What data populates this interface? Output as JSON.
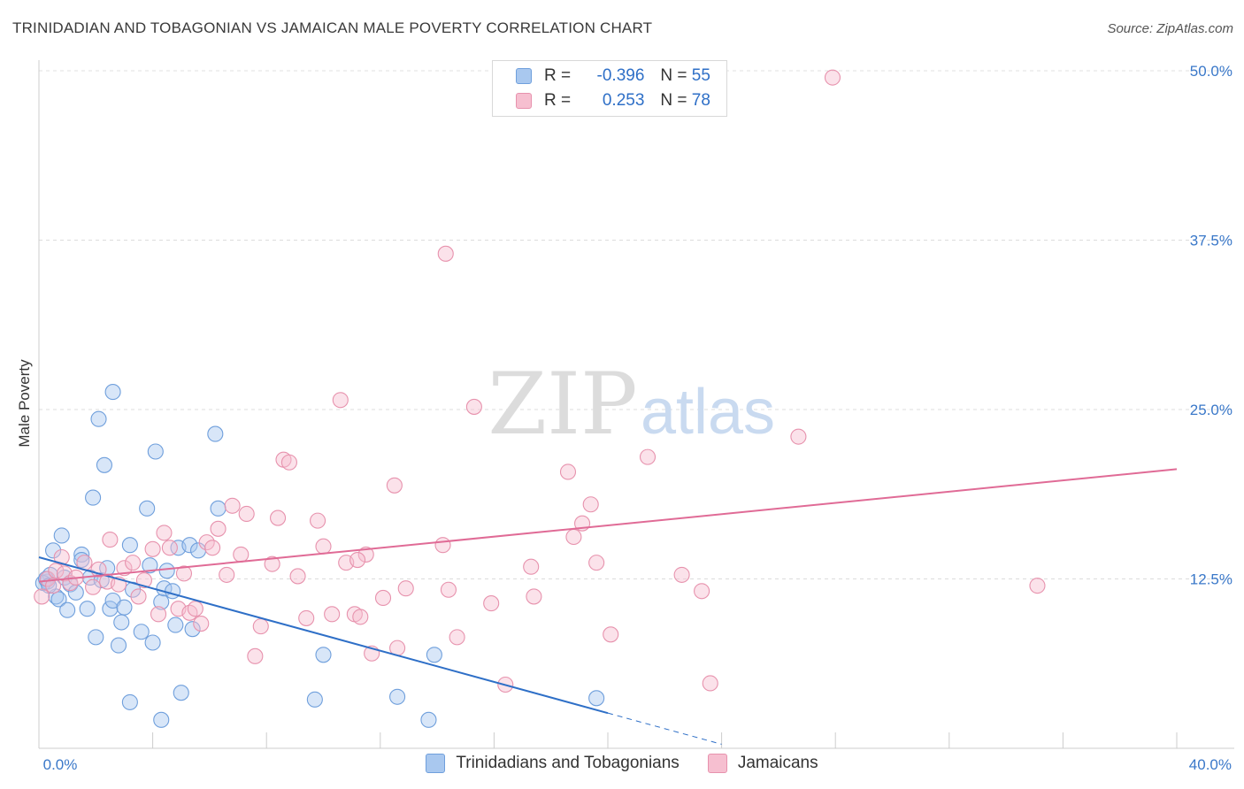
{
  "header": {
    "title": "TRINIDADIAN AND TOBAGONIAN VS JAMAICAN MALE POVERTY CORRELATION CHART",
    "source": "Source: ZipAtlas.com"
  },
  "watermark": {
    "zip": "ZIP",
    "atlas": "atlas"
  },
  "legend": {
    "r_label": "R =",
    "n_label": "N =",
    "rows": [
      {
        "r": "-0.396",
        "n": "55",
        "color": "#a9c8ef",
        "border": "#6f9fdc"
      },
      {
        "r": "0.253",
        "n": "78",
        "color": "#f6bfd0",
        "border": "#e792ad"
      }
    ]
  },
  "chart_data": {
    "type": "scatter",
    "title": "TRINIDADIAN AND TOBAGONIAN VS JAMAICAN MALE POVERTY CORRELATION CHART",
    "xlabel": "",
    "ylabel": "Male Poverty",
    "xlim": [
      0,
      40
    ],
    "ylim": [
      0,
      50
    ],
    "x_tick_labels": [
      "0.0%",
      "40.0%"
    ],
    "y_ticks": [
      12.5,
      25.0,
      37.5,
      50.0
    ],
    "y_tick_labels": [
      "12.5%",
      "25.0%",
      "37.5%",
      "50.0%"
    ],
    "grid": true,
    "legend_position": "top-center",
    "series": [
      {
        "name": "Trinidadians and Tobagonians",
        "color": "#6f9fdc",
        "fill": "#a9c8ef",
        "trend_color": "#2e6fc7",
        "trend": {
          "x0": 0,
          "y0": 14.1,
          "x1": 20,
          "y1": 2.6,
          "dashed_to_x": 24,
          "dashed_to_y": 0.3
        },
        "points": [
          [
            0.3,
            12.3
          ],
          [
            0.4,
            12.8
          ],
          [
            0.5,
            14.6
          ],
          [
            0.6,
            11.2
          ],
          [
            0.7,
            11.0
          ],
          [
            0.8,
            15.7
          ],
          [
            0.9,
            12.6
          ],
          [
            1.0,
            10.2
          ],
          [
            1.1,
            12.1
          ],
          [
            1.3,
            11.5
          ],
          [
            1.5,
            14.3
          ],
          [
            1.5,
            13.9
          ],
          [
            1.7,
            10.3
          ],
          [
            1.8,
            12.6
          ],
          [
            1.9,
            18.5
          ],
          [
            2.0,
            8.2
          ],
          [
            2.1,
            24.3
          ],
          [
            2.2,
            12.4
          ],
          [
            2.3,
            20.9
          ],
          [
            2.4,
            13.3
          ],
          [
            2.5,
            10.3
          ],
          [
            2.6,
            26.3
          ],
          [
            2.6,
            10.9
          ],
          [
            2.8,
            7.6
          ],
          [
            2.9,
            9.3
          ],
          [
            3.0,
            10.4
          ],
          [
            3.2,
            3.4
          ],
          [
            3.2,
            15.0
          ],
          [
            3.3,
            11.7
          ],
          [
            3.6,
            8.6
          ],
          [
            3.8,
            17.7
          ],
          [
            3.9,
            13.5
          ],
          [
            4.0,
            7.8
          ],
          [
            4.1,
            21.9
          ],
          [
            4.3,
            10.8
          ],
          [
            4.4,
            11.8
          ],
          [
            4.5,
            13.1
          ],
          [
            4.7,
            11.6
          ],
          [
            4.8,
            9.1
          ],
          [
            4.9,
            14.8
          ],
          [
            5.0,
            4.1
          ],
          [
            5.3,
            15.0
          ],
          [
            5.4,
            8.8
          ],
          [
            5.6,
            14.6
          ],
          [
            6.2,
            23.2
          ],
          [
            6.3,
            17.7
          ],
          [
            0.15,
            12.2
          ],
          [
            0.25,
            12.5
          ],
          [
            0.35,
            12.0
          ],
          [
            10.0,
            6.9
          ],
          [
            13.9,
            6.9
          ],
          [
            9.7,
            3.6
          ],
          [
            12.6,
            3.8
          ],
          [
            13.7,
            2.1
          ],
          [
            19.6,
            3.7
          ],
          [
            4.3,
            2.1
          ]
        ]
      },
      {
        "name": "Jamaicans",
        "color": "#e792ad",
        "fill": "#f6bfd0",
        "trend_color": "#e06b96",
        "trend": {
          "x0": 0,
          "y0": 12.3,
          "x1": 40,
          "y1": 20.6
        },
        "points": [
          [
            0.1,
            11.2
          ],
          [
            0.3,
            12.5
          ],
          [
            0.5,
            12.0
          ],
          [
            0.6,
            13.1
          ],
          [
            0.8,
            14.1
          ],
          [
            0.9,
            12.9
          ],
          [
            1.1,
            12.2
          ],
          [
            1.3,
            12.6
          ],
          [
            1.6,
            13.7
          ],
          [
            1.9,
            11.9
          ],
          [
            2.1,
            13.2
          ],
          [
            2.4,
            12.3
          ],
          [
            2.5,
            15.4
          ],
          [
            2.8,
            12.1
          ],
          [
            3.0,
            13.3
          ],
          [
            3.3,
            13.7
          ],
          [
            3.5,
            11.2
          ],
          [
            3.7,
            12.4
          ],
          [
            4.0,
            14.7
          ],
          [
            4.2,
            9.9
          ],
          [
            4.4,
            15.9
          ],
          [
            4.6,
            14.8
          ],
          [
            4.9,
            10.3
          ],
          [
            5.1,
            12.9
          ],
          [
            5.3,
            10.0
          ],
          [
            5.5,
            10.3
          ],
          [
            5.7,
            9.2
          ],
          [
            5.9,
            15.2
          ],
          [
            6.1,
            14.8
          ],
          [
            6.3,
            16.2
          ],
          [
            6.6,
            12.8
          ],
          [
            6.8,
            17.9
          ],
          [
            7.1,
            14.3
          ],
          [
            7.3,
            17.3
          ],
          [
            7.6,
            6.8
          ],
          [
            7.8,
            9.0
          ],
          [
            8.2,
            13.6
          ],
          [
            8.4,
            17.0
          ],
          [
            8.6,
            21.3
          ],
          [
            8.8,
            21.1
          ],
          [
            9.1,
            12.7
          ],
          [
            9.4,
            9.6
          ],
          [
            9.8,
            16.8
          ],
          [
            10.0,
            14.9
          ],
          [
            10.3,
            9.9
          ],
          [
            10.6,
            25.7
          ],
          [
            10.8,
            13.7
          ],
          [
            11.1,
            9.9
          ],
          [
            11.3,
            9.7
          ],
          [
            11.5,
            14.3
          ],
          [
            11.7,
            7.0
          ],
          [
            12.1,
            11.1
          ],
          [
            12.5,
            19.4
          ],
          [
            12.6,
            7.4
          ],
          [
            12.9,
            11.8
          ],
          [
            14.2,
            15.0
          ],
          [
            14.4,
            11.7
          ],
          [
            14.7,
            8.2
          ],
          [
            15.3,
            25.2
          ],
          [
            15.9,
            10.7
          ],
          [
            16.4,
            4.7
          ],
          [
            17.3,
            13.4
          ],
          [
            17.4,
            11.2
          ],
          [
            18.6,
            20.4
          ],
          [
            18.8,
            15.6
          ],
          [
            19.1,
            16.6
          ],
          [
            19.4,
            18.0
          ],
          [
            19.6,
            13.7
          ],
          [
            20.1,
            8.4
          ],
          [
            21.4,
            21.5
          ],
          [
            22.6,
            12.8
          ],
          [
            23.3,
            11.6
          ],
          [
            23.6,
            4.8
          ],
          [
            26.7,
            23.0
          ],
          [
            27.9,
            49.5
          ],
          [
            14.3,
            36.5
          ],
          [
            11.2,
            13.9
          ],
          [
            35.1,
            12.0
          ]
        ]
      }
    ]
  }
}
